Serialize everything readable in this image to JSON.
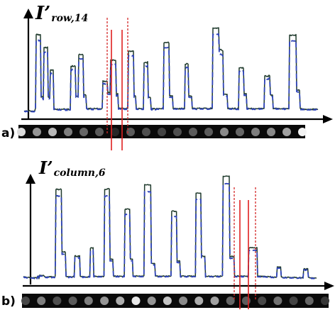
{
  "colors": {
    "axis": "#000000",
    "measured_trace": "#1f3a2c",
    "fitted_trace": "#2e43b8",
    "marker_line": "#e02020",
    "marker_dotted": "#d42a2a",
    "strip_background": "#0a0a0a"
  },
  "panels": [
    {
      "label": "a)",
      "y_symbol": "I’",
      "y_subscript": "row,14",
      "profile": [
        4.4,
        4.6,
        4.2,
        4.8,
        4.5,
        4.3,
        4.9,
        5.0,
        4.8,
        4.5,
        4.3,
        4.6,
        4.2,
        4.5,
        4.2,
        4.8,
        6.6,
        62.0,
        62.4,
        61.8,
        62.2,
        61.5,
        62.0,
        61.9,
        14.9,
        15.5,
        15.3,
        14.0,
        52.3,
        52.1,
        52.6,
        51.9,
        52.2,
        52.7,
        15.1,
        14.7,
        14.9,
        35.3,
        35.6,
        35.1,
        35.5,
        35.4,
        6.0,
        6.3,
        5.8,
        5.9,
        5.5,
        6.1,
        5.6,
        5.7,
        6.2,
        5.5,
        5.7,
        6.0,
        5.8,
        5.8,
        6.3,
        6.2,
        5.8,
        5.3,
        6.1,
        5.4,
        6.3,
        5.4,
        5.7,
        5.7,
        38.2,
        37.8,
        38.7,
        37.9,
        38.1,
        38.6,
        38.2,
        15.8,
        15.7,
        15.7,
        15.2,
        46.8,
        47.3,
        47.0,
        46.8,
        47.0,
        47.2,
        46.5,
        15.9,
        16.6,
        16.9,
        16.4,
        6.8,
        6.4,
        6.1,
        6.6,
        6.0,
        6.7,
        6.6,
        5.9,
        6.4,
        5.8,
        6.4,
        6.7,
        6.3,
        6.2,
        6.5,
        6.7,
        6.1,
        6.3,
        6.1,
        6.4,
        6.1,
        6.0,
        6.9,
        27.3,
        26.7,
        27.1,
        26.5,
        26.8,
        27.1,
        26.8,
        18.3,
        18.6,
        18.5,
        18.1,
        43.0,
        42.8,
        42.4,
        43.1,
        42.9,
        42.6,
        42.7,
        42.5,
        16.8,
        17.2,
        17.7,
        6.3,
        6.7,
        6.8,
        6.2,
        6.8,
        6.9,
        6.8,
        6.4,
        6.5,
        6.0,
        6.5,
        6.1,
        6.9,
        6.5,
        49.1,
        49.7,
        49.6,
        49.2,
        49.6,
        49.3,
        49.8,
        49.6,
        15.8,
        16.1,
        15.8,
        6.3,
        6.2,
        6.2,
        6.2,
        6.7,
        6.3,
        6.3,
        6.5,
        6.1,
        6.2,
        6.1,
        40.8,
        40.9,
        41.2,
        41.0,
        40.6,
        41.7,
        15.3,
        14.7,
        15.0,
        14.5,
        6.0,
        5.7,
        6.6,
        6.0,
        6.6,
        6.3,
        5.8,
        6.1,
        6.6,
        6.3,
        6.2,
        6.5,
        6.4,
        6.3,
        6.1,
        6.4,
        6.9,
        6.5,
        55.7,
        56.1,
        55.9,
        56.1,
        55.9,
        56.1,
        56.4,
        55.6,
        15.9,
        16.2,
        15.8,
        16.0,
        16.0,
        6.3,
        6.3,
        6.6,
        6.6,
        6.2,
        6.5,
        6.4,
        6.3,
        5.9,
        6.6,
        6.2,
        6.5,
        6.8,
        6.4,
        6.3,
        6.6,
        6.2,
        39.7,
        39.6,
        40.3,
        40.2,
        39.8,
        16.2,
        15.9,
        15.9,
        15.9,
        15.5,
        6.3,
        6.6,
        6.7,
        6.6,
        6.6,
        6.2,
        6.1,
        6.8,
        6.6,
        6.6,
        6.9,
        6.6,
        6.3,
        6.6,
        6.3,
        6.4,
        6.8,
        6.6,
        6.9,
        6.5,
        6.8,
        6.3,
        6.2,
        6.3,
        6.4,
        6.5,
        7.0,
        6.2,
        6.4,
        67.0,
        66.8,
        66.9,
        66.8,
        67.0,
        66.6,
        67.0,
        66.9,
        67.2,
        50.6,
        50.5,
        51.0,
        50.5,
        50.0,
        49.7,
        17.2,
        17.2,
        17.2,
        17.3,
        16.8,
        17.1,
        6.2,
        6.7,
        6.6,
        6.3,
        6.5,
        6.2,
        6.6,
        6.7,
        6.1,
        6.1,
        6.9,
        6.3,
        6.1,
        6.0,
        6.7,
        6.0,
        37.0,
        37.0,
        37.1,
        37.2,
        36.7,
        37.3,
        36.8,
        17.4,
        17.7,
        17.3,
        17.7,
        6.3,
        6.3,
        6.7,
        6.5,
        6.3,
        6.1,
        6.8,
        6.4,
        6.1,
        6.5,
        6.3,
        6.0,
        6.4,
        6.2,
        6.3,
        6.2,
        6.4,
        6.7,
        6.2,
        6.6,
        6.4,
        6.6,
        6.2,
        6.5,
        6.4,
        31.0,
        31.2,
        30.7,
        30.4,
        30.8,
        30.4,
        31.5,
        31.0,
        16.9,
        16.4,
        16.7,
        16.5,
        6.2,
        6.4,
        6.6,
        6.6,
        6.8,
        6.2,
        6.5,
        6.5,
        6.4,
        6.4,
        6.1,
        6.1,
        6.3,
        6.4,
        6.5,
        6.7,
        6.0,
        6.5,
        6.4,
        6.3,
        6.5,
        6.1,
        6.6,
        61.6,
        61.7,
        61.1,
        61.5,
        61.7,
        61.6,
        61.4,
        61.6,
        61.3,
        62.1,
        20.5,
        20.4,
        20.1,
        20.6,
        20.1,
        6.6,
        5.8,
        6.5,
        5.9,
        5.9,
        6.2,
        5.5,
        6.0,
        5.6,
        5.8,
        5.8,
        5.7,
        6.0,
        5.7,
        5.8,
        5.9,
        5.8,
        5.4,
        6.3,
        5.7,
        6.2,
        5.6,
        6.2,
        6.1,
        5.7,
        5.9
      ],
      "spots": [
        0.85,
        0.55,
        0.7,
        0.45,
        0.35,
        0.3,
        0.08,
        0.3,
        0.25,
        0.2,
        0.25,
        0.3,
        0.3,
        0.5,
        0.35,
        0.45,
        0.5,
        0.6,
        0.95
      ],
      "markers": {
        "solid_x": [
          157,
          172
        ],
        "dotted_x": [
          151,
          180
        ]
      }
    },
    {
      "label": "b)",
      "y_symbol": "I’",
      "y_subscript": "column,6",
      "profile": [
        5.6,
        6.0,
        5.4,
        5.8,
        5.5,
        5.1,
        5.2,
        5.4,
        5.5,
        5.1,
        5.3,
        5.0,
        5.2,
        5.0,
        5.0,
        5.2,
        4.6,
        5.3,
        5.0,
        5.2,
        4.5,
        6.3,
        6.5,
        4.2,
        7.3,
        6.6,
        7.1,
        6.8,
        6.8,
        7.1,
        6.9,
        6.0,
        5.9,
        5.5,
        5.7,
        5.3,
        5.9,
        5.8,
        5.8,
        6.1,
        5.6,
        6.2,
        5.3,
        5.8,
        5.9,
        5.4,
        5.5,
        6.5,
        78.6,
        79.1,
        78.7,
        79.0,
        78.3,
        78.5,
        78.9,
        79.1,
        78.5,
        26.3,
        26.6,
        26.5,
        26.4,
        26.9,
        26.1,
        6.0,
        6.0,
        5.8,
        6.1,
        5.4,
        6.1,
        6.0,
        5.9,
        5.7,
        5.6,
        5.9,
        6.4,
        5.4,
        23.4,
        23.5,
        22.7,
        22.7,
        22.8,
        23.4,
        22.7,
        23.5,
        6.3,
        6.0,
        6.0,
        6.2,
        5.5,
        6.1,
        5.8,
        5.8,
        5.6,
        5.3,
        5.7,
        5.3,
        6.2,
        6.0,
        6.0,
        29.6,
        30.1,
        30.0,
        29.7,
        30.1,
        6.1,
        6.5,
        6.5,
        6.0,
        6.3,
        6.0,
        6.0,
        6.3,
        6.2,
        6.1,
        6.2,
        6.1,
        6.3,
        6.2,
        5.8,
        6.4,
        78.7,
        78.6,
        78.5,
        79.0,
        78.9,
        79.5,
        79.3,
        79.2,
        20.3,
        20.6,
        20.7,
        20.3,
        20.5,
        6.6,
        6.0,
        6.6,
        6.5,
        6.2,
        6.1,
        6.7,
        6.2,
        6.2,
        6.5,
        6.2,
        6.4,
        6.2,
        6.0,
        6.0,
        6.8,
        6.3,
        61.9,
        62.4,
        62.0,
        62.4,
        62.5,
        62.5,
        61.9,
        62.2,
        20.6,
        20.6,
        20.6,
        20.6,
        6.6,
        6.4,
        6.4,
        6.5,
        6.2,
        6.8,
        6.5,
        6.3,
        6.4,
        6.5,
        6.5,
        6.3,
        6.2,
        6.5,
        6.5,
        6.2,
        6.7,
        82.7,
        82.6,
        82.5,
        82.5,
        82.6,
        82.8,
        82.3,
        82.5,
        82.5,
        82.4,
        17.2,
        16.9,
        16.9,
        16.7,
        17.1,
        16.8,
        6.4,
        6.7,
        6.4,
        6.6,
        6.1,
        6.2,
        6.5,
        6.2,
        6.4,
        6.2,
        6.4,
        6.3,
        6.6,
        6.2,
        6.3,
        6.1,
        6.6,
        6.3,
        6.4,
        6.3,
        6.8,
        6.2,
        6.2,
        6.5,
        60.4,
        60.7,
        60.9,
        60.7,
        60.2,
        60.5,
        60.2,
        60.3,
        19.0,
        19.0,
        18.8,
        19.3,
        19.0,
        6.1,
        6.0,
        6.6,
        6.5,
        6.7,
        6.5,
        6.3,
        6.4,
        6.1,
        6.0,
        6.2,
        6.6,
        6.5,
        6.7,
        6.6,
        6.1,
        6.7,
        6.1,
        6.3,
        6.5,
        6.3,
        6.4,
        6.3,
        75.6,
        75.6,
        75.8,
        75.6,
        75.6,
        75.4,
        75.7,
        75.5,
        23.2,
        23.0,
        23.3,
        22.7,
        22.6,
        23.1,
        6.0,
        6.2,
        6.2,
        6.0,
        6.4,
        6.5,
        6.3,
        6.2,
        6.3,
        6.4,
        6.1,
        6.0,
        6.2,
        6.2,
        6.4,
        6.6,
        6.3,
        6.2,
        6.6,
        6.0,
        6.3,
        6.1,
        6.7,
        6.2,
        6.2,
        6.7,
        89.7,
        89.5,
        89.6,
        89.6,
        89.8,
        89.9,
        89.7,
        89.7,
        89.6,
        89.8,
        22.7,
        22.5,
        22.7,
        23.2,
        22.6,
        22.8,
        22.5,
        6.1,
        6.5,
        6.1,
        6.1,
        6.6,
        6.8,
        6.2,
        6.0,
        6.2,
        6.5,
        6.6,
        6.0,
        6.5,
        6.1,
        6.6,
        6.5,
        6.3,
        6.1,
        6.4,
        6.2,
        6.5,
        29.7,
        29.9,
        30.3,
        30.2,
        30.0,
        30.3,
        30.0,
        29.9,
        30.2,
        29.9,
        29.4,
        30.2,
        30.2,
        6.2,
        6.5,
        6.1,
        6.5,
        6.0,
        6.5,
        5.8,
        6.4,
        6.0,
        6.4,
        6.2,
        6.2,
        6.0,
        6.0,
        5.7,
        6.2,
        6.1,
        5.8,
        5.7,
        6.3,
        5.5,
        5.5,
        5.8,
        5.4,
        5.4,
        5.7,
        5.6,
        5.2,
        5.7,
        14.2,
        13.9,
        14.0,
        14.1,
        13.8,
        14.1,
        5.7,
        5.6,
        5.4,
        5.2,
        5.1,
        5.2,
        5.6,
        5.3,
        5.1,
        5.3,
        5.7,
        5.4,
        5.4,
        5.0,
        5.3,
        5.0,
        5.1,
        5.4,
        5.2,
        5.5,
        5.5,
        5.1,
        5.4,
        4.9,
        4.9,
        4.9,
        5.0,
        5.4,
        5.3,
        4.7,
        5.0,
        5.4,
        4.6,
        12.0,
        12.7,
        12.3,
        11.9,
        12.4,
        12.7,
        12.6,
        5.4,
        5.3,
        4.9,
        4.9,
        5.1,
        4.6,
        5.1,
        4.6,
        4.9,
        4.7,
        4.9,
        4.8,
        4.6
      ],
      "spots": [
        0.22,
        0.45,
        0.25,
        0.3,
        0.45,
        0.55,
        0.65,
        0.9,
        0.55,
        0.75,
        0.5,
        0.65,
        0.6,
        0.35,
        0.3,
        0.22,
        0.4,
        0.2,
        0.35,
        0.15
      ],
      "markers": {
        "solid_x": [
          338,
          350
        ],
        "dotted_x": [
          330,
          360
        ]
      }
    }
  ]
}
